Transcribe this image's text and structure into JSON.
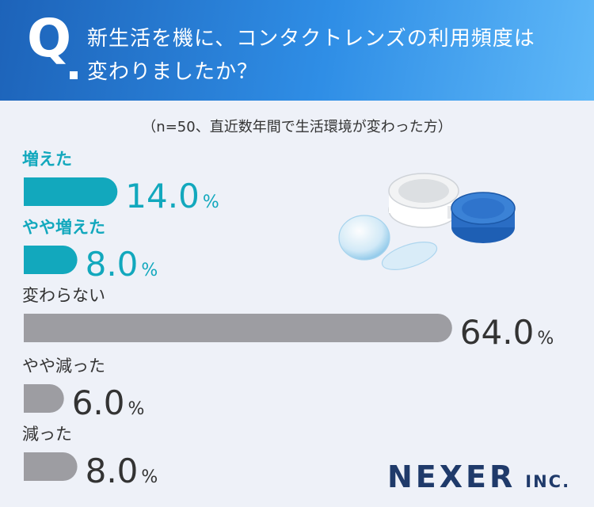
{
  "question": {
    "mark": "Q",
    "line1": "新生活を機に、コンタクトレンズの利用頻度は",
    "line2": "変わりましたか？"
  },
  "note": "（n=50、直近数年間で生活環境が変わった方）",
  "brand": {
    "main": "NEXER",
    "suffix": "INC."
  },
  "colors": {
    "header_start": "#1d63b9",
    "header_end": "#5fb8f8",
    "background": "#eef1f8",
    "accent_bar": "#12a8bd",
    "neutral_bar": "#9d9da2",
    "accent_text": "#12a8bd",
    "neutral_text": "#333333",
    "brand": "#1f3a6a"
  },
  "chart_data": {
    "type": "bar",
    "orientation": "horizontal",
    "categories": [
      "増えた",
      "やや増えた",
      "変わらない",
      "やや減った",
      "減った"
    ],
    "values": [
      14.0,
      8.0,
      64.0,
      6.0,
      8.0
    ],
    "value_labels": [
      "14.0",
      "8.0",
      "64.0",
      "6.0",
      "8.0"
    ],
    "unit": "%",
    "highlight": [
      true,
      true,
      false,
      false,
      false
    ],
    "grid": false,
    "xlim": [
      0,
      100
    ]
  }
}
